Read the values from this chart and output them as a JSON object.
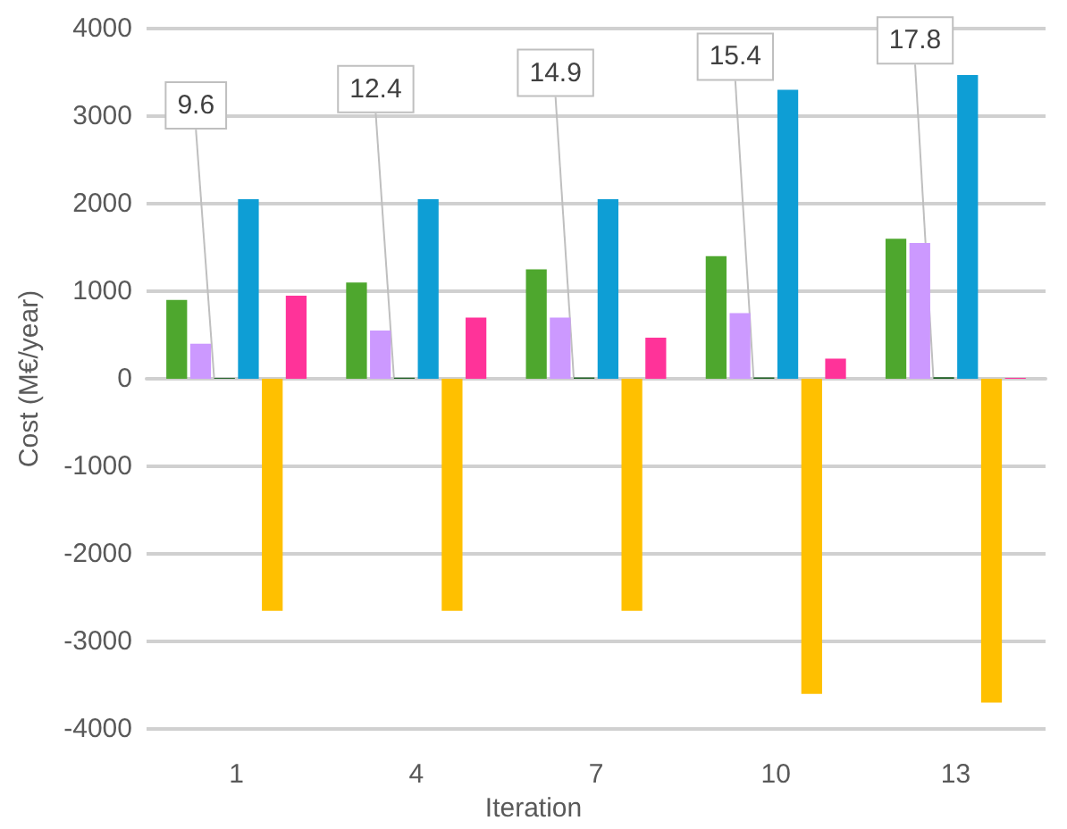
{
  "chart_data": {
    "type": "bar",
    "xlabel": "Iteration",
    "ylabel": "Cost (M€/year)",
    "categories": [
      "1",
      "4",
      "7",
      "10",
      "13"
    ],
    "series": [
      {
        "color": "#4ea72e",
        "values": [
          900,
          1100,
          1250,
          1400,
          1600
        ]
      },
      {
        "color": "#cc99ff",
        "values": [
          400,
          550,
          700,
          750,
          1550
        ]
      },
      {
        "color": "#1a5e20",
        "values": [
          9.6,
          12.4,
          14.9,
          15.4,
          17.8
        ],
        "value_labels": [
          "9.6",
          "12.4",
          "14.9",
          "15.4",
          "17.8"
        ]
      },
      {
        "color": "#0e9ed5",
        "values": [
          2050,
          2050,
          2050,
          3300,
          3470
        ]
      },
      {
        "color": "#ffc000",
        "values": [
          -2650,
          -2650,
          -2650,
          -3600,
          -3700
        ]
      },
      {
        "color": "#ff3399",
        "values": [
          950,
          700,
          470,
          230,
          10
        ]
      }
    ],
    "ylim": [
      -4000,
      4000
    ],
    "yticks": [
      -4000,
      -3000,
      -2000,
      -1000,
      0,
      1000,
      2000,
      3000,
      4000
    ],
    "grid": "y"
  }
}
